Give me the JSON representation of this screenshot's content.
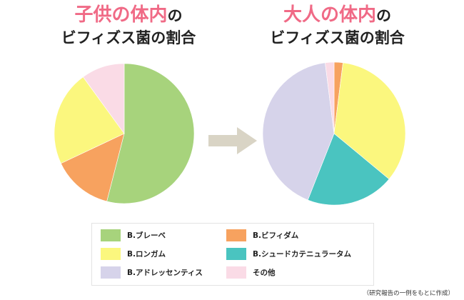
{
  "titles": {
    "child": {
      "highlight": "子供の体内",
      "particle": "の",
      "line2": "ビフィズス菌の割合"
    },
    "adult": {
      "highlight": "大人の体内",
      "particle": "の",
      "line2": "ビフィズス菌の割合"
    }
  },
  "colors": {
    "highlight": "#f06a86",
    "arrow": "#d9d4c5"
  },
  "chart_data": [
    {
      "type": "pie",
      "title": "子供の体内のビフィズス菌の割合",
      "categories": [
        "B.ブレーベ",
        "B.ビフィダム",
        "B.ロンガム",
        "その他"
      ],
      "values": [
        54,
        14,
        22,
        10
      ],
      "colors": [
        "#a7d37c",
        "#f7a25f",
        "#fbf77e",
        "#fadbe6"
      ]
    },
    {
      "type": "pie",
      "title": "大人の体内のビフィズス菌の割合",
      "categories": [
        "B.ビフィダム",
        "B.ロンガム",
        "B.シュードカテニュラータム",
        "B.アドレッセンティス",
        "その他"
      ],
      "values": [
        2,
        34,
        20,
        42,
        2
      ],
      "colors": [
        "#f7a25f",
        "#fbf77e",
        "#4ac4c0",
        "#d6d3ea",
        "#fadbe6"
      ]
    }
  ],
  "legend": [
    {
      "label": "B.ブレーベ",
      "color": "#a7d37c"
    },
    {
      "label": "B.ビフィダム",
      "color": "#f7a25f"
    },
    {
      "label": "B.ロンガム",
      "color": "#fbf77e"
    },
    {
      "label": "B.シュードカテニュラータム",
      "color": "#4ac4c0"
    },
    {
      "label": "B.アドレッセンティス",
      "color": "#d6d3ea"
    },
    {
      "label": "その他",
      "color": "#fadbe6"
    }
  ],
  "note": "（研究報告の一例をもとに作成）"
}
